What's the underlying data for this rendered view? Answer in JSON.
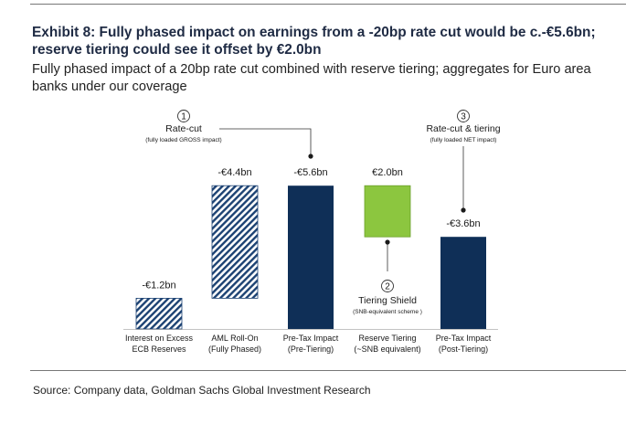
{
  "header": {
    "title": "Exhibit 8: Fully phased impact on earnings from a -20bp rate cut would be c.-€5.6bn; reserve tiering could see it offset by €2.0bn",
    "subtitle": "Fully phased impact of a 20bp rate cut combined with reserve tiering; aggregates for Euro area banks under our coverage"
  },
  "chart_data": {
    "type": "bar",
    "subtype": "waterfall",
    "categories": [
      [
        "Interest on Excess",
        "ECB Reserves"
      ],
      [
        "AML Roll-On",
        "(Fully Phased)"
      ],
      [
        "Pre-Tax Impact",
        "(Pre-Tiering)"
      ],
      [
        "Reserve Tiering",
        "(~SNB equivalent)"
      ],
      [
        "Pre-Tax Impact",
        "(Post-Tiering)"
      ]
    ],
    "values": [
      -1.2,
      -4.4,
      -5.6,
      2.0,
      -3.6
    ],
    "value_labels": [
      "-€1.2bn",
      "-€4.4bn",
      "-€5.6bn",
      "€2.0bn",
      "-€3.6bn"
    ],
    "unit": "€bn",
    "ylim": [
      -5.6,
      0
    ],
    "bar_styles": [
      "hatched",
      "hatched",
      "solid-navy",
      "solid-green",
      "solid-navy"
    ],
    "annotations": [
      {
        "marker": "1",
        "title": "Rate-cut",
        "note": "(fully loaded GROSS impact)",
        "target_bar": 2
      },
      {
        "marker": "2",
        "title": "Tiering Shield",
        "note": "(SNB-equivalent scheme )",
        "target_bar": 3
      },
      {
        "marker": "3",
        "title": "Rate-cut & tiering",
        "note": "(fully loaded NET impact)",
        "target_bar": 4
      }
    ],
    "grid": false,
    "legend": "none"
  },
  "colors": {
    "navy": "#0f2f57",
    "green": "#8cc63f",
    "hatch": "#1c4273",
    "title": "#1f2b44"
  },
  "footer": {
    "source": "Source: Company data, Goldman Sachs Global Investment Research"
  }
}
